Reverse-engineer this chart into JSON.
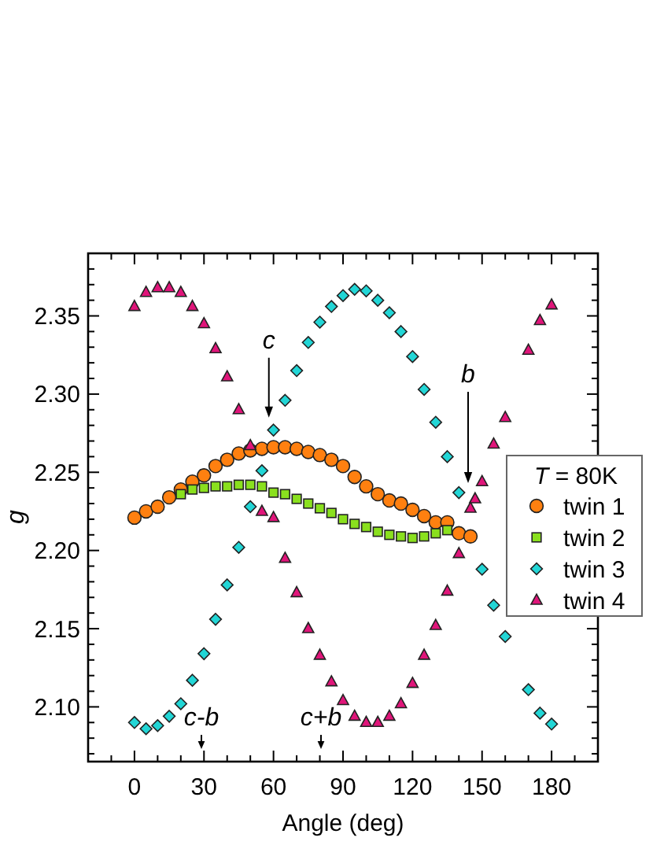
{
  "chart_data": {
    "type": "scatter",
    "xlabel": "Angle (deg)",
    "ylabel": "g",
    "legend_title": "T = 80K",
    "legend": "right",
    "xlim": [
      -20,
      200
    ],
    "xticks": [
      {
        "value": -10,
        "label": null
      },
      0,
      {
        "value": 10,
        "label": null
      },
      {
        "value": 20,
        "label": null
      },
      30,
      {
        "value": 40,
        "label": null
      },
      {
        "value": 50,
        "label": null
      },
      60,
      {
        "value": 70,
        "label": null
      },
      {
        "value": 80,
        "label": null
      },
      90,
      {
        "value": 100,
        "label": null
      },
      {
        "value": 110,
        "label": null
      },
      120,
      {
        "value": 130,
        "label": null
      },
      {
        "value": 140,
        "label": null
      },
      150,
      {
        "value": 160,
        "label": null
      },
      {
        "value": 170,
        "label": null
      },
      180,
      {
        "value": 190,
        "label": null
      }
    ],
    "ylim": [
      2.065,
      2.39
    ],
    "yticks": [
      {
        "value": 2.07,
        "label": null
      },
      {
        "value": 2.08,
        "label": null
      },
      {
        "value": 2.09,
        "label": null
      },
      {
        "value": 2.1,
        "label": "2.10"
      },
      {
        "value": 2.11,
        "label": null
      },
      {
        "value": 2.12,
        "label": null
      },
      {
        "value": 2.13,
        "label": null
      },
      {
        "value": 2.14,
        "label": null
      },
      2.15,
      {
        "value": 2.16,
        "label": null
      },
      {
        "value": 2.17,
        "label": null
      },
      {
        "value": 2.18,
        "label": null
      },
      {
        "value": 2.19,
        "label": null
      },
      {
        "value": 2.2,
        "label": "2.20"
      },
      {
        "value": 2.21,
        "label": null
      },
      {
        "value": 2.22,
        "label": null
      },
      {
        "value": 2.23,
        "label": null
      },
      {
        "value": 2.24,
        "label": null
      },
      2.25,
      {
        "value": 2.26,
        "label": null
      },
      {
        "value": 2.27,
        "label": null
      },
      {
        "value": 2.28,
        "label": null
      },
      {
        "value": 2.29,
        "label": null
      },
      {
        "value": 2.3,
        "label": "2.30"
      },
      {
        "value": 2.31,
        "label": null
      },
      {
        "value": 2.32,
        "label": null
      },
      {
        "value": 2.33,
        "label": null
      },
      {
        "value": 2.34,
        "label": null
      },
      2.35,
      {
        "value": 2.36,
        "label": null
      },
      {
        "value": 2.37,
        "label": null
      },
      {
        "value": 2.38,
        "label": null
      },
      {
        "value": 2.39,
        "label": null
      }
    ],
    "series": [
      {
        "name": "twin 1",
        "color": "#ff8010",
        "marker": "circle",
        "x": [
          0,
          5,
          10,
          15,
          20,
          25,
          30,
          35,
          40,
          45,
          50,
          55,
          60,
          65,
          70,
          75,
          80,
          85,
          90,
          95,
          100,
          105,
          110,
          115,
          120,
          125,
          130,
          135,
          140,
          145
        ],
        "values": [
          2.221,
          2.225,
          2.228,
          2.234,
          2.239,
          2.244,
          2.248,
          2.254,
          2.258,
          2.262,
          2.264,
          2.265,
          2.266,
          2.266,
          2.265,
          2.263,
          2.261,
          2.258,
          2.254,
          2.247,
          2.241,
          2.236,
          2.232,
          2.23,
          2.226,
          2.222,
          2.218,
          2.218,
          2.211,
          2.209
        ]
      },
      {
        "name": "twin 2",
        "color": "#8ae01e",
        "marker": "square",
        "x": [
          20,
          25,
          30,
          35,
          40,
          45,
          50,
          55,
          60,
          65,
          70,
          75,
          80,
          85,
          90,
          95,
          100,
          105,
          110,
          115,
          120,
          125,
          130,
          135
        ],
        "values": [
          2.236,
          2.239,
          2.24,
          2.241,
          2.241,
          2.242,
          2.242,
          2.241,
          2.237,
          2.236,
          2.233,
          2.23,
          2.227,
          2.224,
          2.22,
          2.217,
          2.215,
          2.212,
          2.21,
          2.209,
          2.208,
          2.209,
          2.211,
          2.213
        ]
      },
      {
        "name": "twin 3",
        "color": "#22d6d6",
        "marker": "diamond",
        "x": [
          0,
          5,
          10,
          15,
          20,
          25,
          30,
          35,
          40,
          45,
          50,
          55,
          60,
          65,
          70,
          75,
          80,
          85,
          90,
          95,
          100,
          105,
          110,
          115,
          120,
          125,
          130,
          135,
          140,
          150,
          155,
          160,
          170,
          175,
          180
        ],
        "values": [
          2.09,
          2.086,
          2.088,
          2.094,
          2.102,
          2.117,
          2.134,
          2.156,
          2.178,
          2.202,
          2.228,
          2.251,
          2.277,
          2.296,
          2.315,
          2.333,
          2.346,
          2.356,
          2.363,
          2.367,
          2.366,
          2.36,
          2.352,
          2.34,
          2.324,
          2.303,
          2.282,
          2.26,
          2.237,
          2.188,
          2.165,
          2.145,
          2.111,
          2.096,
          2.089
        ]
      },
      {
        "name": "twin 4",
        "color": "#e0157a",
        "marker": "triangle",
        "x": [
          0,
          5,
          10,
          15,
          20,
          25,
          30,
          35,
          40,
          45,
          50,
          55,
          60,
          65,
          70,
          75,
          80,
          85,
          90,
          95,
          100,
          105,
          110,
          115,
          120,
          125,
          130,
          135,
          140,
          145,
          147,
          150,
          155,
          160,
          170,
          175,
          180
        ],
        "values": [
          2.356,
          2.365,
          2.368,
          2.368,
          2.365,
          2.356,
          2.345,
          2.329,
          2.311,
          2.29,
          2.267,
          2.225,
          2.221,
          2.195,
          2.173,
          2.15,
          2.133,
          2.116,
          2.104,
          2.094,
          2.09,
          2.09,
          2.094,
          2.102,
          2.115,
          2.133,
          2.152,
          2.174,
          2.198,
          2.227,
          2.233,
          2.244,
          2.268,
          2.285,
          2.328,
          2.347,
          2.357
        ]
      }
    ],
    "annotations": [
      {
        "text": "c",
        "x": 58,
        "y": 2.285
      },
      "b",
      "c-b",
      "c+b"
    ]
  }
}
